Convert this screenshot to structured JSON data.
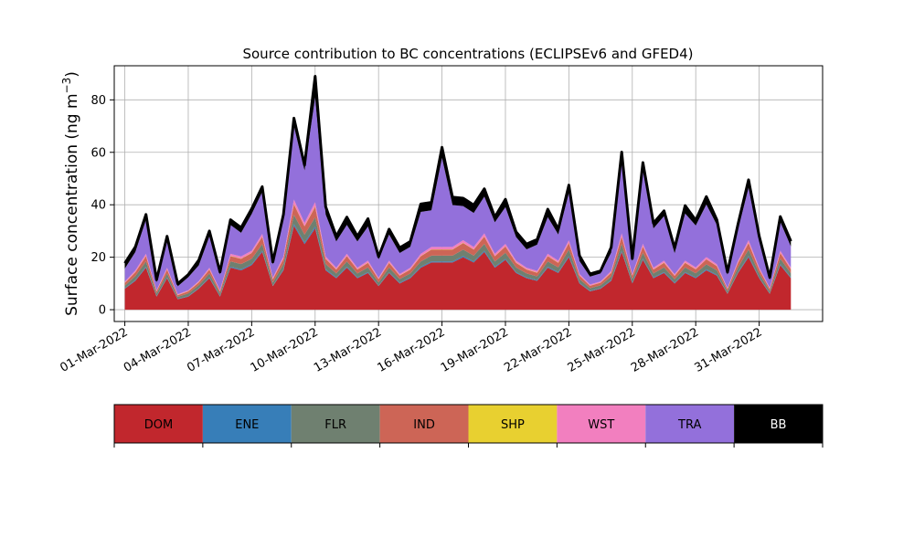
{
  "chart_data": {
    "type": "area",
    "title": "Source contribution to BC concentrations (ECLIPSEv6 and GFED4)",
    "ylabel": "Surface concentration (ng m",
    "ylabel_exponent": "−3",
    "ylabel_close": ")",
    "xlim": [
      -0.5,
      33.0
    ],
    "ylim": [
      -4.5,
      93
    ],
    "yticks": [
      0,
      20,
      40,
      60,
      80
    ],
    "xticks": [
      {
        "x": 0,
        "label": "01-Mar-2022"
      },
      {
        "x": 3,
        "label": "04-Mar-2022"
      },
      {
        "x": 6,
        "label": "07-Mar-2022"
      },
      {
        "x": 9,
        "label": "10-Mar-2022"
      },
      {
        "x": 12,
        "label": "13-Mar-2022"
      },
      {
        "x": 15,
        "label": "16-Mar-2022"
      },
      {
        "x": 18,
        "label": "19-Mar-2022"
      },
      {
        "x": 21,
        "label": "22-Mar-2022"
      },
      {
        "x": 24,
        "label": "25-Mar-2022"
      },
      {
        "x": 27,
        "label": "28-Mar-2022"
      },
      {
        "x": 30,
        "label": "31-Mar-2022"
      }
    ],
    "grid": true,
    "x": [
      0,
      0.5,
      1,
      1.5,
      2,
      2.5,
      3,
      3.5,
      4,
      4.5,
      5,
      5.5,
      6,
      6.5,
      7,
      7.5,
      8,
      8.5,
      9,
      9.5,
      10,
      10.5,
      11,
      11.5,
      12,
      12.5,
      13,
      13.5,
      14,
      14.5,
      15,
      15.5,
      16,
      16.5,
      17,
      17.5,
      18,
      18.5,
      19,
      19.5,
      20,
      20.5,
      21,
      21.5,
      22,
      22.5,
      23,
      23.5,
      24,
      24.5,
      25,
      25.5,
      26,
      26.5,
      27,
      27.5,
      28,
      28.5,
      29,
      29.5,
      30,
      30.5,
      31,
      31.5
    ],
    "stack_order": [
      "DOM",
      "ENE",
      "FLR",
      "IND",
      "SHP",
      "WST",
      "TRA",
      "BB"
    ],
    "series": [
      {
        "name": "DOM",
        "color": "#c1272d",
        "values": [
          8,
          11,
          16,
          5,
          12,
          4,
          5,
          8,
          12,
          5,
          16,
          15,
          17,
          22,
          9,
          15,
          32,
          25,
          31,
          15,
          12,
          16,
          12,
          14,
          9,
          14,
          10,
          12,
          16,
          18,
          18,
          18,
          20,
          18,
          22,
          16,
          19,
          14,
          12,
          11,
          16,
          14,
          20,
          10,
          7,
          8,
          11,
          22,
          10,
          19,
          12,
          14,
          10,
          14,
          12,
          15,
          13,
          6,
          14,
          20,
          12,
          6,
          17,
          12
        ]
      },
      {
        "name": "ENE",
        "color": "#377eb8",
        "values": [
          0.2,
          0.3,
          0.4,
          0.2,
          0.3,
          0.1,
          0.2,
          0.2,
          0.3,
          0.2,
          0.4,
          0.4,
          0.4,
          0.5,
          0.2,
          0.4,
          0.7,
          0.6,
          0.7,
          0.4,
          0.3,
          0.4,
          0.3,
          0.3,
          0.2,
          0.3,
          0.3,
          0.3,
          0.4,
          0.4,
          0.4,
          0.4,
          0.5,
          0.4,
          0.5,
          0.4,
          0.4,
          0.3,
          0.3,
          0.3,
          0.4,
          0.3,
          0.5,
          0.3,
          0.2,
          0.2,
          0.3,
          0.5,
          0.3,
          0.4,
          0.3,
          0.3,
          0.3,
          0.3,
          0.3,
          0.4,
          0.3,
          0.2,
          0.3,
          0.5,
          0.3,
          0.2,
          0.4,
          0.3
        ]
      },
      {
        "name": "FLR",
        "color": "#6f8070",
        "values": [
          1,
          1.5,
          2,
          1,
          1.5,
          0.8,
          1,
          1.2,
          1.5,
          1,
          2,
          2,
          2,
          2.5,
          1.2,
          2,
          3.5,
          3,
          3.5,
          2,
          1.5,
          2,
          1.5,
          1.8,
          1.2,
          1.8,
          1.4,
          1.5,
          2,
          2.2,
          2.2,
          2.2,
          2.4,
          2.2,
          2.6,
          2,
          2.3,
          1.8,
          1.5,
          1.4,
          2,
          1.8,
          2.4,
          1.4,
          1,
          1.1,
          1.4,
          2.6,
          1.3,
          2.3,
          1.5,
          1.8,
          1.3,
          1.8,
          1.6,
          1.9,
          1.7,
          0.9,
          1.8,
          2.4,
          1.6,
          0.9,
          2.1,
          1.6
        ]
      },
      {
        "name": "IND",
        "color": "#cd6556",
        "values": [
          1,
          1.5,
          2,
          0.8,
          1.5,
          0.6,
          0.8,
          1,
          1.5,
          0.8,
          2,
          2,
          2.2,
          2.8,
          1.2,
          2,
          4,
          3.2,
          4,
          2,
          1.5,
          2,
          1.5,
          1.8,
          1.2,
          1.8,
          1.3,
          1.5,
          2,
          2.3,
          2.3,
          2.3,
          2.5,
          2.3,
          2.8,
          2,
          2.4,
          1.8,
          1.5,
          1.4,
          2,
          1.8,
          2.5,
          1.3,
          0.9,
          1,
          1.4,
          2.8,
          1.3,
          2.4,
          1.5,
          1.8,
          1.3,
          1.8,
          1.5,
          1.9,
          1.6,
          0.8,
          1.8,
          2.5,
          1.5,
          0.8,
          2.1,
          1.5
        ]
      },
      {
        "name": "SHP",
        "color": "#e8d030",
        "values": [
          0.1,
          0.1,
          0.1,
          0.1,
          0.1,
          0.1,
          0.1,
          0.1,
          0.1,
          0.1,
          0.1,
          0.1,
          0.1,
          0.1,
          0.1,
          0.1,
          0.2,
          0.1,
          0.2,
          0.1,
          0.1,
          0.1,
          0.1,
          0.1,
          0.1,
          0.1,
          0.1,
          0.1,
          0.1,
          0.1,
          0.1,
          0.1,
          0.1,
          0.1,
          0.1,
          0.1,
          0.1,
          0.1,
          0.1,
          0.1,
          0.1,
          0.1,
          0.1,
          0.1,
          0.1,
          0.1,
          0.1,
          0.1,
          0.1,
          0.1,
          0.1,
          0.1,
          0.1,
          0.1,
          0.1,
          0.1,
          0.1,
          0.1,
          0.1,
          0.1,
          0.1,
          0.1,
          0.1,
          0.1
        ]
      },
      {
        "name": "WST",
        "color": "#f27fbf",
        "values": [
          0.4,
          0.6,
          0.8,
          0.3,
          0.6,
          0.3,
          0.3,
          0.4,
          0.6,
          0.3,
          0.8,
          0.8,
          0.8,
          1,
          0.5,
          0.8,
          1.6,
          1.2,
          1.6,
          0.8,
          0.6,
          0.8,
          0.6,
          0.7,
          0.5,
          0.7,
          0.5,
          0.6,
          0.8,
          0.9,
          0.9,
          0.9,
          1,
          0.9,
          1.1,
          0.8,
          0.9,
          0.7,
          0.6,
          0.6,
          0.8,
          0.7,
          1,
          0.5,
          0.4,
          0.4,
          0.6,
          1.1,
          0.5,
          0.9,
          0.6,
          0.7,
          0.5,
          0.7,
          0.6,
          0.8,
          0.6,
          0.3,
          0.7,
          1,
          0.6,
          0.3,
          0.8,
          0.6
        ]
      },
      {
        "name": "TRA",
        "color": "#9370db",
        "values": [
          5,
          7,
          13,
          3,
          10,
          3,
          5,
          6,
          12,
          6,
          11,
          9,
          14,
          16,
          5,
          14,
          28,
          20,
          40,
          16,
          10,
          11,
          10,
          13,
          7,
          10,
          8,
          8,
          16,
          14,
          34,
          16,
          13,
          13,
          14,
          12,
          14,
          9,
          7,
          10,
          14,
          10,
          18,
          5,
          3,
          3,
          7,
          28,
          5,
          28,
          15,
          17,
          8,
          18,
          16,
          20,
          15,
          5,
          12,
          20,
          10,
          3,
          11,
          8
        ]
      },
      {
        "name": "BB",
        "color": "#000000",
        "values": [
          2,
          2,
          2,
          1,
          2,
          1,
          1,
          2,
          2,
          1,
          2,
          2,
          2,
          2,
          1,
          2,
          3,
          2,
          8,
          3,
          2,
          3,
          2,
          3,
          1,
          2,
          2,
          2,
          3,
          3,
          4,
          3,
          3,
          3,
          3,
          2,
          3,
          2,
          2,
          2,
          3,
          2,
          3,
          2,
          1,
          1,
          2,
          3,
          1,
          3,
          2,
          2,
          2,
          3,
          2,
          3,
          2,
          1,
          2,
          3,
          2,
          1,
          2,
          2
        ]
      }
    ],
    "legend": {
      "placement": "bottom",
      "entries": [
        {
          "label": "DOM",
          "color": "#c1272d",
          "text_color": "#000000"
        },
        {
          "label": "ENE",
          "color": "#377eb8",
          "text_color": "#000000"
        },
        {
          "label": "FLR",
          "color": "#6f8070",
          "text_color": "#000000"
        },
        {
          "label": "IND",
          "color": "#cd6556",
          "text_color": "#000000"
        },
        {
          "label": "SHP",
          "color": "#e8d030",
          "text_color": "#000000"
        },
        {
          "label": "WST",
          "color": "#f27fbf",
          "text_color": "#000000"
        },
        {
          "label": "TRA",
          "color": "#9370db",
          "text_color": "#000000"
        },
        {
          "label": "BB",
          "color": "#000000",
          "text_color": "#ffffff"
        }
      ]
    }
  }
}
